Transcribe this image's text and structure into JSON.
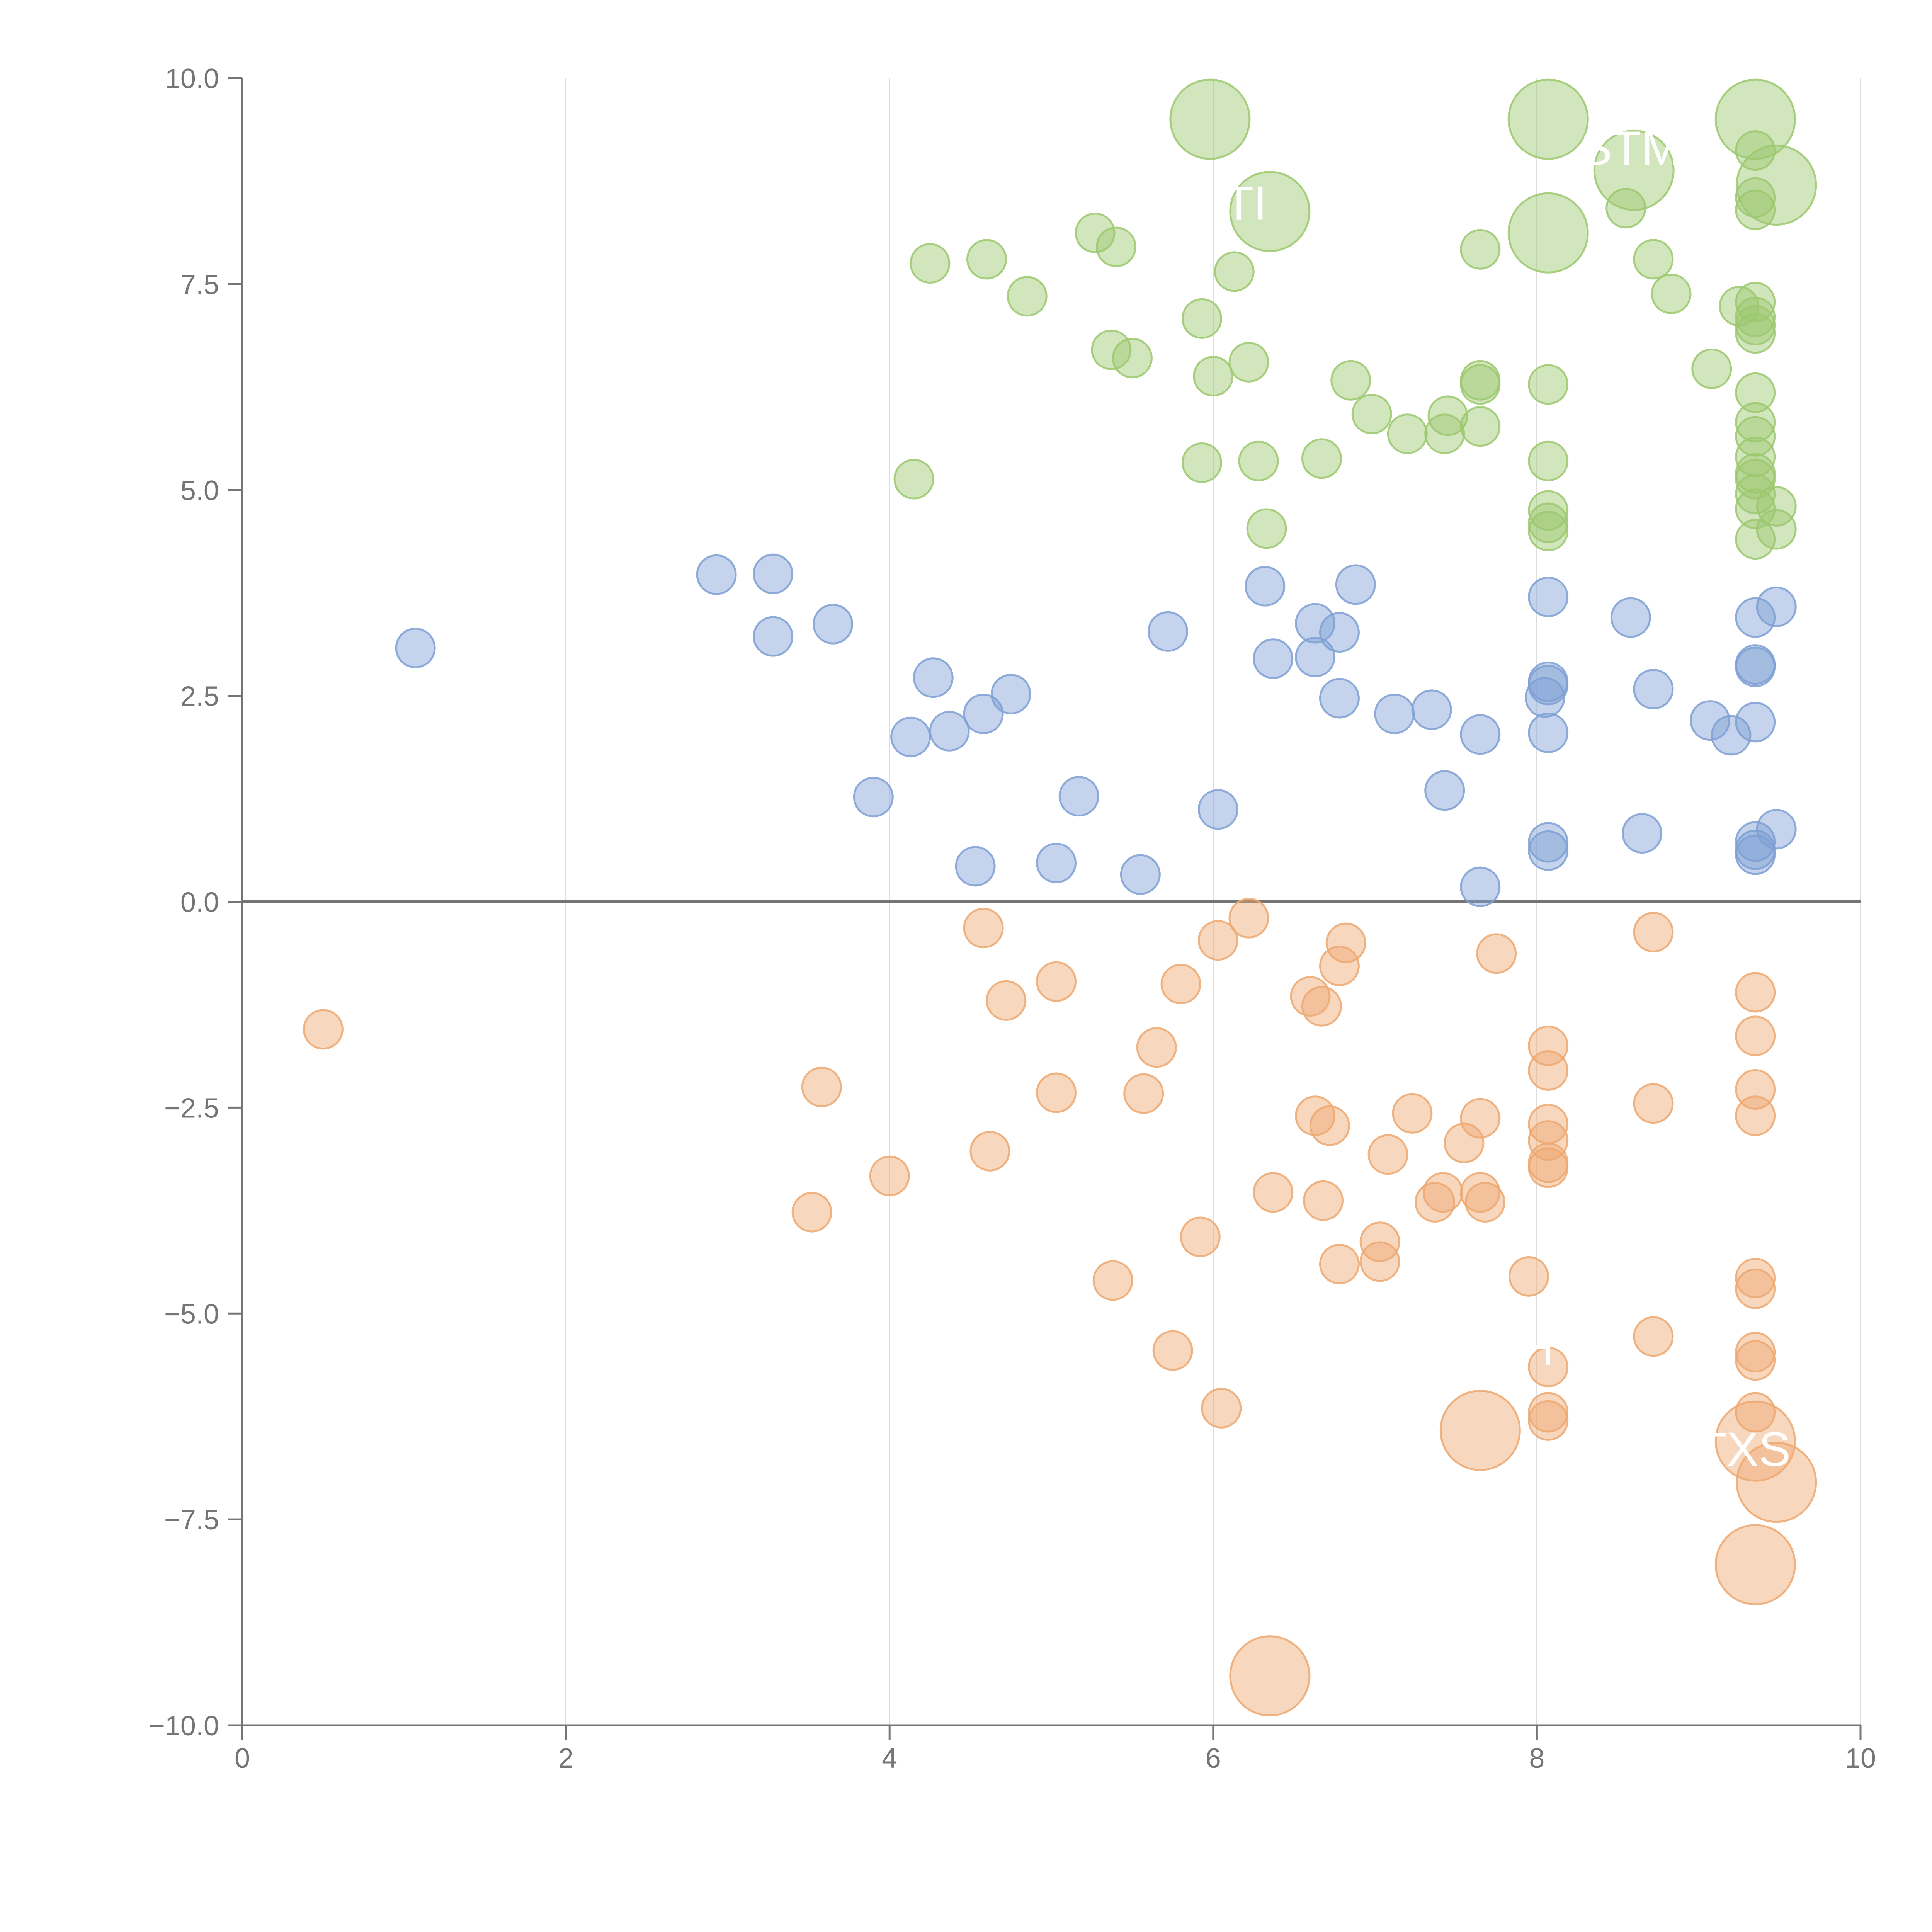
{
  "chart_data": {
    "type": "scatter",
    "title": "",
    "xlabel": "",
    "ylabel": "",
    "xlim": [
      0,
      10
    ],
    "ylim": [
      -10,
      10
    ],
    "x_ticks": [
      0,
      2,
      4,
      6,
      8,
      10
    ],
    "x_tick_labels": [
      "0",
      "2",
      "4",
      "6",
      "8",
      "10"
    ],
    "y_ticks": [
      -10,
      -7.5,
      -5,
      -2.5,
      0,
      2.5,
      5,
      7.5,
      10
    ],
    "y_tick_labels": [
      "−10.0",
      "−7.5",
      "−5.0",
      "−2.5",
      "0.0",
      "2.5",
      "5.0",
      "7.5",
      "10.0"
    ],
    "vertical_grid": true,
    "horizontal_grid": false,
    "zero_line": true,
    "legend": "none",
    "colors": {
      "axis": "#757575",
      "grid": "#dddddd",
      "zero_line": "#757575",
      "label_text": "#ffffff"
    },
    "series": [
      {
        "color": "#9cc86e",
        "points": [
          {
            "x": 4.25,
            "y": 7.75
          },
          {
            "x": 4.6,
            "y": 7.8
          },
          {
            "x": 4.85,
            "y": 7.35
          },
          {
            "x": 5.27,
            "y": 8.12
          },
          {
            "x": 5.4,
            "y": 7.95
          },
          {
            "x": 5.37,
            "y": 6.7
          },
          {
            "x": 5.5,
            "y": 6.6
          },
          {
            "x": 5.93,
            "y": 7.08
          },
          {
            "x": 6.13,
            "y": 7.65
          },
          {
            "x": 6.0,
            "y": 6.38
          },
          {
            "x": 6.22,
            "y": 6.55
          },
          {
            "x": 5.93,
            "y": 5.33
          },
          {
            "x": 6.28,
            "y": 5.35
          },
          {
            "x": 6.67,
            "y": 5.38
          },
          {
            "x": 6.33,
            "y": 4.53
          },
          {
            "x": 4.15,
            "y": 5.13
          },
          {
            "x": 6.85,
            "y": 6.33
          },
          {
            "x": 6.98,
            "y": 5.92
          },
          {
            "x": 7.2,
            "y": 5.68
          },
          {
            "x": 7.45,
            "y": 5.9
          },
          {
            "x": 7.43,
            "y": 5.68
          },
          {
            "x": 7.65,
            "y": 5.77
          },
          {
            "x": 7.65,
            "y": 6.28
          },
          {
            "x": 7.65,
            "y": 6.33
          },
          {
            "x": 7.65,
            "y": 7.92
          },
          {
            "x": 8.07,
            "y": 6.28
          },
          {
            "x": 8.07,
            "y": 5.35
          },
          {
            "x": 8.07,
            "y": 4.75
          },
          {
            "x": 8.07,
            "y": 4.6
          },
          {
            "x": 8.07,
            "y": 4.5
          },
          {
            "x": 8.55,
            "y": 8.42
          },
          {
            "x": 8.72,
            "y": 7.8
          },
          {
            "x": 8.83,
            "y": 7.38
          },
          {
            "x": 9.08,
            "y": 6.47
          },
          {
            "x": 9.25,
            "y": 7.23
          },
          {
            "x": 9.35,
            "y": 7.28
          },
          {
            "x": 9.35,
            "y": 7.1
          },
          {
            "x": 9.35,
            "y": 7.0
          },
          {
            "x": 9.35,
            "y": 6.9
          },
          {
            "x": 9.35,
            "y": 6.18
          },
          {
            "x": 9.35,
            "y": 5.82
          },
          {
            "x": 9.35,
            "y": 5.65
          },
          {
            "x": 9.35,
            "y": 5.4
          },
          {
            "x": 9.35,
            "y": 5.2
          },
          {
            "x": 9.35,
            "y": 5.13
          },
          {
            "x": 9.35,
            "y": 4.95
          },
          {
            "x": 9.35,
            "y": 4.77
          },
          {
            "x": 9.35,
            "y": 4.4
          },
          {
            "x": 9.48,
            "y": 4.8
          },
          {
            "x": 9.48,
            "y": 4.52
          },
          {
            "x": 9.35,
            "y": 8.4
          },
          {
            "x": 9.35,
            "y": 8.55
          },
          {
            "x": 9.35,
            "y": 9.12
          },
          {
            "x": 5.98,
            "y": 9.5,
            "size": 2
          },
          {
            "x": 6.35,
            "y": 8.38,
            "size": 2
          },
          {
            "x": 8.07,
            "y": 9.5,
            "size": 2
          },
          {
            "x": 8.07,
            "y": 8.12,
            "size": 2
          },
          {
            "x": 8.6,
            "y": 8.88,
            "size": 2
          },
          {
            "x": 9.35,
            "y": 9.5,
            "size": 2
          },
          {
            "x": 9.48,
            "y": 8.7,
            "size": 2
          }
        ]
      },
      {
        "color": "#7ea0d4",
        "points": [
          {
            "x": 1.07,
            "y": 3.08
          },
          {
            "x": 2.93,
            "y": 3.97
          },
          {
            "x": 3.28,
            "y": 3.98
          },
          {
            "x": 3.28,
            "y": 3.22
          },
          {
            "x": 3.65,
            "y": 3.37
          },
          {
            "x": 3.9,
            "y": 1.27
          },
          {
            "x": 4.13,
            "y": 2.0
          },
          {
            "x": 4.27,
            "y": 2.72
          },
          {
            "x": 4.37,
            "y": 2.07
          },
          {
            "x": 4.58,
            "y": 2.28
          },
          {
            "x": 4.75,
            "y": 2.52
          },
          {
            "x": 4.53,
            "y": 0.43
          },
          {
            "x": 5.03,
            "y": 0.47
          },
          {
            "x": 5.17,
            "y": 1.28
          },
          {
            "x": 5.55,
            "y": 0.33
          },
          {
            "x": 5.72,
            "y": 3.28
          },
          {
            "x": 6.03,
            "y": 1.12
          },
          {
            "x": 6.32,
            "y": 3.83
          },
          {
            "x": 6.37,
            "y": 2.95
          },
          {
            "x": 6.63,
            "y": 3.38
          },
          {
            "x": 6.63,
            "y": 2.97
          },
          {
            "x": 6.78,
            "y": 3.27
          },
          {
            "x": 6.78,
            "y": 2.47
          },
          {
            "x": 6.88,
            "y": 3.85
          },
          {
            "x": 7.12,
            "y": 2.28
          },
          {
            "x": 7.35,
            "y": 2.33
          },
          {
            "x": 7.43,
            "y": 1.35
          },
          {
            "x": 7.65,
            "y": 2.03
          },
          {
            "x": 7.65,
            "y": 0.18
          },
          {
            "x": 8.05,
            "y": 2.48
          },
          {
            "x": 8.07,
            "y": 2.63
          },
          {
            "x": 8.07,
            "y": 2.67
          },
          {
            "x": 8.07,
            "y": 3.7
          },
          {
            "x": 8.07,
            "y": 2.05
          },
          {
            "x": 8.07,
            "y": 0.72
          },
          {
            "x": 8.07,
            "y": 0.62
          },
          {
            "x": 8.58,
            "y": 3.45
          },
          {
            "x": 8.72,
            "y": 2.58
          },
          {
            "x": 8.65,
            "y": 0.83
          },
          {
            "x": 9.07,
            "y": 2.2
          },
          {
            "x": 9.2,
            "y": 2.02
          },
          {
            "x": 9.35,
            "y": 3.45
          },
          {
            "x": 9.35,
            "y": 2.88
          },
          {
            "x": 9.35,
            "y": 2.85
          },
          {
            "x": 9.35,
            "y": 2.18
          },
          {
            "x": 9.35,
            "y": 0.73
          },
          {
            "x": 9.35,
            "y": 0.63
          },
          {
            "x": 9.35,
            "y": 0.57
          },
          {
            "x": 9.48,
            "y": 3.58
          },
          {
            "x": 9.48,
            "y": 0.88
          }
        ]
      },
      {
        "color": "#eda870",
        "points": [
          {
            "x": 0.5,
            "y": -1.55
          },
          {
            "x": 3.52,
            "y": -3.77
          },
          {
            "x": 3.58,
            "y": -2.25
          },
          {
            "x": 4.0,
            "y": -3.33
          },
          {
            "x": 4.58,
            "y": -0.32
          },
          {
            "x": 4.62,
            "y": -3.03
          },
          {
            "x": 4.72,
            "y": -1.2
          },
          {
            "x": 5.03,
            "y": -0.97
          },
          {
            "x": 5.03,
            "y": -2.32
          },
          {
            "x": 5.38,
            "y": -4.6
          },
          {
            "x": 5.57,
            "y": -2.33
          },
          {
            "x": 5.65,
            "y": -1.77
          },
          {
            "x": 5.75,
            "y": -5.45
          },
          {
            "x": 5.8,
            "y": -1.0
          },
          {
            "x": 5.92,
            "y": -4.07
          },
          {
            "x": 6.03,
            "y": -0.47
          },
          {
            "x": 6.05,
            "y": -6.15
          },
          {
            "x": 6.22,
            "y": -0.2
          },
          {
            "x": 6.37,
            "y": -3.53
          },
          {
            "x": 6.6,
            "y": -1.15
          },
          {
            "x": 6.63,
            "y": -2.6
          },
          {
            "x": 6.67,
            "y": -1.27
          },
          {
            "x": 6.68,
            "y": -3.63
          },
          {
            "x": 6.72,
            "y": -2.72
          },
          {
            "x": 6.78,
            "y": -4.4
          },
          {
            "x": 6.78,
            "y": -0.78
          },
          {
            "x": 6.82,
            "y": -0.5
          },
          {
            "x": 7.03,
            "y": -4.13
          },
          {
            "x": 7.03,
            "y": -4.37
          },
          {
            "x": 7.08,
            "y": -3.07
          },
          {
            "x": 7.23,
            "y": -2.57
          },
          {
            "x": 7.37,
            "y": -3.65
          },
          {
            "x": 7.42,
            "y": -3.53
          },
          {
            "x": 7.55,
            "y": -2.93
          },
          {
            "x": 7.65,
            "y": -2.63
          },
          {
            "x": 7.65,
            "y": -3.53
          },
          {
            "x": 7.68,
            "y": -3.65
          },
          {
            "x": 7.75,
            "y": -0.63
          },
          {
            "x": 7.95,
            "y": -4.55
          },
          {
            "x": 8.07,
            "y": -1.75
          },
          {
            "x": 8.07,
            "y": -2.05
          },
          {
            "x": 8.07,
            "y": -2.7
          },
          {
            "x": 8.07,
            "y": -2.9
          },
          {
            "x": 8.07,
            "y": -3.17
          },
          {
            "x": 8.07,
            "y": -3.23
          },
          {
            "x": 8.07,
            "y": -5.65
          },
          {
            "x": 8.07,
            "y": -6.2
          },
          {
            "x": 8.07,
            "y": -6.3
          },
          {
            "x": 8.72,
            "y": -0.37
          },
          {
            "x": 8.72,
            "y": -2.45
          },
          {
            "x": 8.72,
            "y": -5.28
          },
          {
            "x": 9.35,
            "y": -1.1
          },
          {
            "x": 9.35,
            "y": -1.63
          },
          {
            "x": 9.35,
            "y": -2.28
          },
          {
            "x": 9.35,
            "y": -2.6
          },
          {
            "x": 9.35,
            "y": -4.57
          },
          {
            "x": 9.35,
            "y": -4.7
          },
          {
            "x": 9.35,
            "y": -5.47
          },
          {
            "x": 9.35,
            "y": -5.57
          },
          {
            "x": 9.35,
            "y": -6.2
          },
          {
            "x": 6.35,
            "y": -9.4,
            "size": 2
          },
          {
            "x": 7.65,
            "y": -6.42,
            "size": 2
          },
          {
            "x": 9.35,
            "y": -6.55,
            "size": 2
          },
          {
            "x": 9.48,
            "y": -7.05,
            "size": 2
          },
          {
            "x": 9.35,
            "y": -8.05,
            "size": 2
          }
        ]
      }
    ],
    "annotations": [
      {
        "text": "TI",
        "x": 6.2,
        "y": 8.28
      },
      {
        "text": "STM",
        "x": 8.58,
        "y": 8.95
      },
      {
        "text": "H",
        "x": 8.0,
        "y": -5.62
      },
      {
        "text": "TXS",
        "x": 9.28,
        "y": -6.85
      }
    ]
  }
}
